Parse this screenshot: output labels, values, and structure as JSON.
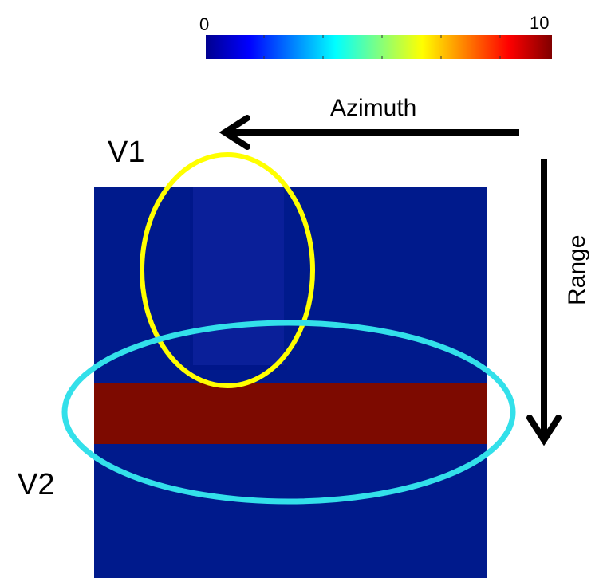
{
  "colorbar": {
    "min_label": "0",
    "max_label": "10",
    "colormap": "jet",
    "range": [
      0,
      10
    ]
  },
  "axes": {
    "azimuth_label": "Azimuth",
    "range_label": "Range"
  },
  "regions": {
    "v1_label": "V1",
    "v2_label": "V2"
  },
  "image": {
    "background_value": 0,
    "v1_strip_value": 0.3,
    "v2_band_value": 10
  },
  "colors": {
    "background": "#001a8c",
    "v1_strip": "#0a1f99",
    "v1_edge": "#00178a",
    "v2_band": "#7d0a00",
    "v1_ellipse": "#ffff00",
    "v2_ellipse": "#33e0ea",
    "arrows": "#000000"
  }
}
